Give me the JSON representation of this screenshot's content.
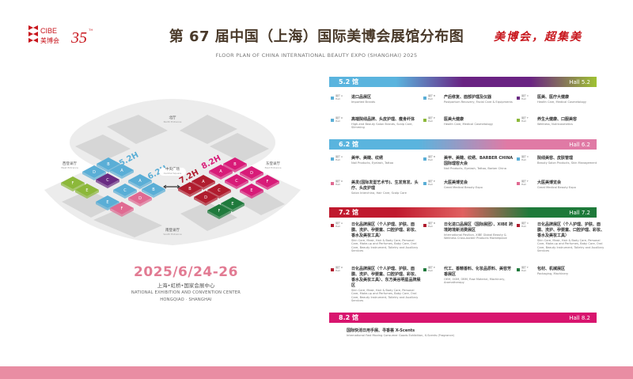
{
  "header": {
    "logo_text": "CIBE 美博会 35TH",
    "title": "第 67 届中国（上海）国际美博会展馆分布图",
    "subtitle": "FLOOR PLAN OF CHINA INTERNATIONAL BEAUTY EXPO (SHANGHAI) 2025",
    "slogan": "美博会，超集美"
  },
  "event": {
    "date": "2025/6/24-26",
    "venue_cn": "上海•虹桥•国家会展中心",
    "venue_en1": "NATIONAL EXHIBITION AND CONVENTION CENTER",
    "venue_en2": "HONGQIAO · SHANGHAI"
  },
  "map": {
    "north": {
      "cn": "北厅",
      "en": "North Entrance"
    },
    "west": {
      "cn": "西登录厅",
      "en": "West Entrance"
    },
    "east": {
      "cn": "东登录厅",
      "en": "East Entrance"
    },
    "central": {
      "cn": "中央广场",
      "en": "Central Square"
    },
    "south": {
      "cn": "南登录厅",
      "en": "South Entrance"
    },
    "halls": [
      {
        "label": "5.2H",
        "color": "#5aaed6"
      },
      {
        "label": "6.2H",
        "color": "#5aaed6"
      },
      {
        "label": "7.2H",
        "color": "#b01c2e"
      },
      {
        "label": "8.2H",
        "color": "#d81b78"
      }
    ],
    "tiles": [
      {
        "zone": "B",
        "color": "#5aaed6"
      },
      {
        "zone": "A",
        "color": "#5aaed6"
      },
      {
        "zone": "D",
        "color": "#5aaed6"
      },
      {
        "zone": "C",
        "color": "#6a2c83"
      },
      {
        "zone": "F",
        "color": "#8cb83a"
      },
      {
        "zone": "E",
        "color": "#8cb83a"
      },
      {
        "zone": "A",
        "color": "#5aaed6"
      },
      {
        "zone": "B",
        "color": "#5aaed6"
      },
      {
        "zone": "C",
        "color": "#5aaed6"
      },
      {
        "zone": "D",
        "color": "#e06a92"
      },
      {
        "zone": "E",
        "color": "#5aaed6"
      },
      {
        "zone": "F",
        "color": "#e06a92"
      },
      {
        "zone": "A",
        "color": "#b01c2e"
      },
      {
        "zone": "B",
        "color": "#b01c2e"
      },
      {
        "zone": "C",
        "color": "#b01c2e"
      },
      {
        "zone": "D",
        "color": "#b01c2e"
      },
      {
        "zone": "E",
        "color": "#1f7a3c"
      },
      {
        "zone": "F",
        "color": "#1f7a3c"
      },
      {
        "zone": "B",
        "color": "#d81b78"
      },
      {
        "zone": "A",
        "color": "#d81b78"
      },
      {
        "zone": "D",
        "color": "#d81b78"
      },
      {
        "zone": "C",
        "color": "#d81b78"
      },
      {
        "zone": "F",
        "color": "#d81b78"
      },
      {
        "zone": "E",
        "color": "#d81b78"
      }
    ]
  },
  "sections": [
    {
      "cn": "5.2 馆",
      "en": "Hall 5.2",
      "gradient": [
        "#5ab4de",
        "#5ab4de",
        "#6a2383",
        "#6a2383",
        "#9fc232"
      ],
      "items": [
        {
          "zone": "A",
          "color": "#5aaed6",
          "cn": "进口品展区",
          "en": "Imported Brands"
        },
        {
          "zone": "B",
          "color": "#5aaed6",
          "cn": "产后修复、面部护理及仪器",
          "en": "Postpartum Recovery, Facial Care & Equipments"
        },
        {
          "zone": "C",
          "color": "#6a2c83",
          "cn": "医美、医疗大健康",
          "en": "Health Care, Medical Cosmetology"
        },
        {
          "zone": "D",
          "color": "#5aaed6",
          "cn": "高端院线品牌、头皮护理、瘦身纤体",
          "en": "High-end Beauty Salon Brands, Scalp Care, Slimming"
        },
        {
          "zone": "E",
          "color": "#8cb83a",
          "cn": "医美大健康",
          "en": "Health Care, Medical Cosmetology"
        },
        {
          "zone": "F",
          "color": "#8cb83a",
          "cn": "养生大健康、口服美容",
          "en": "Wellness, Nutricosmetics"
        }
      ]
    },
    {
      "cn": "6.2 馆",
      "en": "Hall 6.2",
      "gradient": [
        "#5ab4de",
        "#5ab4de",
        "#e07aa5",
        "#e07aa5"
      ],
      "items": [
        {
          "zone": "A",
          "color": "#5aaed6",
          "cn": "美甲、美睫、纹绣",
          "en": "Nail Products, Eyelash, Tattoo"
        },
        {
          "zone": "B",
          "color": "#5aaed6",
          "cn": "美甲、美睫、纹绣、BARBER CHINA 国际理容大会",
          "en": "Nail Products, Eyelash, Tattoo, Barber China"
        },
        {
          "zone": "C",
          "color": "#5aaed6",
          "cn": "院线美容、皮肤管理",
          "en": "Beauty Salon Products, Skin Management"
        },
        {
          "zone": "D",
          "color": "#e06a92",
          "cn": "美发(国际发型艺术节)、生发育发、头疗、头皮护理",
          "en": "Salon Interchina, Hair Care, Scalp Care"
        },
        {
          "zone": "E",
          "color": "#5aaed6",
          "cn": "大医美博览会",
          "en": "Great Medical Beauty Expo"
        },
        {
          "zone": "F",
          "color": "#e06a92",
          "cn": "大医美博览会",
          "en": "Great Medical Beauty Expo"
        }
      ]
    },
    {
      "cn": "7.2 馆",
      "en": "Hall 7.2",
      "gradient": [
        "#c0192e",
        "#c0192e",
        "#e06060",
        "#1e7a3a",
        "#1e7a3a"
      ],
      "items": [
        {
          "zone": "A",
          "color": "#b01c2e",
          "cn": "日化品牌展区（个人护理、护肤、面膜、洗护、孕婴童、口腔护理、彩妆、香水及美妆工具）",
          "en": "Skin Care, Mask, Hair & Body Care, Personal Care, Make-up and Perfumes, Baby Care, Oral Care, Beauty Instrument, Toiletry and Auxiliary Services"
        },
        {
          "zone": "B",
          "color": "#b01c2e",
          "cn": "日化进口品展区（国际展团）、XIBE 跨境跨境新消费展区",
          "en": "International Pavilion, XIBE Global Beauty & Wellness Cross-border Products Marketplace"
        },
        {
          "zone": "C",
          "color": "#b01c2e",
          "cn": "日化品牌展区（个人护理、护肤、面膜、洗护、孕婴童、口腔护理、彩妆、香水及美妆工具）",
          "en": "Skin Care, Mask, Hair & Body Care, Personal Care, Make-up and Perfumes, Baby Care, Oral Care, Beauty Instrument, Toiletry and Auxiliary Services"
        },
        {
          "zone": "D",
          "color": "#b01c2e",
          "cn": "日化品牌展区（个人护理、护肤、面膜、洗护、孕婴童、口腔护理、彩妆、香水及美妆工具）、东方美谷明星品牌展区",
          "en": "Skin Care, Mask, Hair & Body Care, Personal Care, Make-up and Perfumes, Baby Care, Oral Care, Beauty Instrument, Toiletry and Auxiliary Services"
        },
        {
          "zone": "E",
          "color": "#1f7a3c",
          "cn": "代工、香精香料、化妆品原料、美容芳香展区",
          "en": "OEM, ODM, OBM, Raw Material, Machinery, Aromatherapy"
        },
        {
          "zone": "F",
          "color": "#1f7a3c",
          "cn": "包材、机械展区",
          "en": "Packaging, Machinery"
        }
      ]
    },
    {
      "cn": "8.2 馆",
      "en": "Hall 8.2",
      "gradient": [
        "#d8146e",
        "#d8146e"
      ],
      "items": [
        {
          "zone": "",
          "color": "",
          "cn": "国际快消日用手展、寻香荟 X-Scents",
          "en": "International Fast Moving Consumer Goods Exhibition, X-Scents (Fragrance)"
        }
      ]
    }
  ],
  "zone_label_cn": "展厅",
  "zone_label_en": "Hall"
}
